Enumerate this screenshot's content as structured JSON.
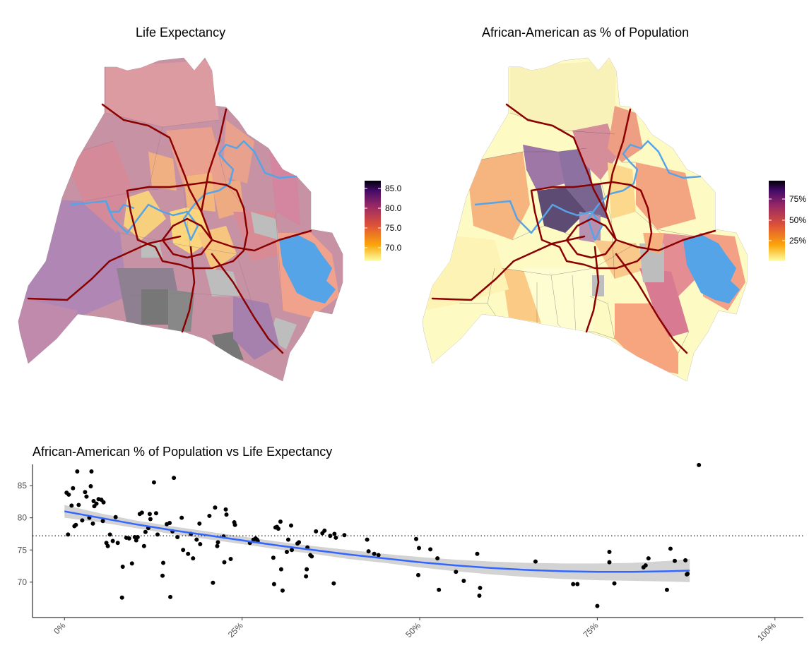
{
  "panels": {
    "map_left_title": "Life Expectancy",
    "map_right_title": "African-American as % of Population",
    "scatter_title": "African-American % of Population vs Life Expectancy"
  },
  "legend_left": {
    "ticks": [
      "85.0",
      "80.0",
      "75.0",
      "70.0"
    ]
  },
  "legend_right": {
    "ticks": [
      "75%",
      "50%",
      "25%"
    ]
  },
  "colors": {
    "water": "#56a4e8",
    "roads": "#8b0000",
    "missing": "#b5b5b5",
    "smooth_line": "#3366ff",
    "ci_band": "#d3d3d3",
    "points": "#000000"
  },
  "chart_data": {
    "type": "scatter",
    "title": "African-American % of Population vs Life Expectancy",
    "xlabel": "",
    "ylabel": "",
    "xlim": [
      -4.5,
      104
    ],
    "ylim": [
      64.5,
      88.3
    ],
    "x_ticks": [
      "0%",
      "25%",
      "50%",
      "75%",
      "100%"
    ],
    "y_ticks": [
      "70",
      "75",
      "80",
      "85"
    ],
    "reference_line_y": 77.2,
    "points": [
      [
        0.3,
        83.9
      ],
      [
        0.5,
        77.4
      ],
      [
        0.6,
        83.6
      ],
      [
        1.0,
        81.9
      ],
      [
        1.2,
        84.6
      ],
      [
        1.4,
        78.7
      ],
      [
        1.6,
        78.9
      ],
      [
        1.8,
        87.2
      ],
      [
        2.0,
        82.0
      ],
      [
        2.5,
        79.6
      ],
      [
        2.9,
        84.0
      ],
      [
        3.1,
        83.3
      ],
      [
        3.5,
        80.0
      ],
      [
        3.7,
        84.9
      ],
      [
        3.8,
        87.2
      ],
      [
        4.0,
        79.1
      ],
      [
        4.1,
        82.6
      ],
      [
        4.2,
        81.8
      ],
      [
        4.5,
        82.2
      ],
      [
        4.8,
        82.9
      ],
      [
        5.2,
        82.8
      ],
      [
        5.4,
        79.5
      ],
      [
        5.5,
        82.4
      ],
      [
        5.9,
        76.1
      ],
      [
        6.1,
        75.6
      ],
      [
        6.4,
        77.4
      ],
      [
        6.8,
        76.4
      ],
      [
        7.2,
        80.1
      ],
      [
        7.5,
        76.1
      ],
      [
        8.1,
        67.6
      ],
      [
        8.2,
        72.4
      ],
      [
        8.7,
        76.9
      ],
      [
        9.1,
        76.8
      ],
      [
        9.5,
        72.9
      ],
      [
        9.9,
        77.0
      ],
      [
        10.1,
        76.5
      ],
      [
        10.3,
        77.0
      ],
      [
        10.6,
        80.6
      ],
      [
        10.9,
        80.8
      ],
      [
        11.2,
        75.6
      ],
      [
        11.4,
        77.8
      ],
      [
        11.8,
        78.4
      ],
      [
        12.0,
        80.6
      ],
      [
        12.1,
        79.8
      ],
      [
        12.6,
        85.5
      ],
      [
        12.9,
        80.7
      ],
      [
        13.1,
        77.4
      ],
      [
        13.8,
        71.0
      ],
      [
        13.9,
        73.0
      ],
      [
        14.4,
        79.0
      ],
      [
        14.8,
        79.2
      ],
      [
        14.9,
        67.7
      ],
      [
        15.2,
        77.9
      ],
      [
        15.4,
        86.2
      ],
      [
        15.9,
        77.0
      ],
      [
        16.5,
        80.0
      ],
      [
        16.7,
        75.0
      ],
      [
        17.4,
        74.4
      ],
      [
        17.8,
        77.5
      ],
      [
        18.1,
        73.7
      ],
      [
        18.6,
        76.6
      ],
      [
        19.0,
        79.1
      ],
      [
        19.1,
        75.9
      ],
      [
        20.4,
        80.3
      ],
      [
        20.9,
        69.9
      ],
      [
        21.2,
        81.6
      ],
      [
        21.5,
        75.6
      ],
      [
        21.6,
        76.2
      ],
      [
        22.4,
        77.1
      ],
      [
        22.5,
        73.1
      ],
      [
        22.7,
        81.3
      ],
      [
        22.8,
        80.5
      ],
      [
        23.4,
        73.6
      ],
      [
        23.9,
        79.3
      ],
      [
        24.0,
        78.9
      ],
      [
        26.1,
        76.1
      ],
      [
        26.6,
        76.6
      ],
      [
        26.9,
        76.8
      ],
      [
        27.1,
        76.6
      ],
      [
        27.2,
        76.4
      ],
      [
        29.4,
        73.8
      ],
      [
        29.5,
        69.7
      ],
      [
        29.7,
        78.5
      ],
      [
        29.9,
        78.6
      ],
      [
        30.1,
        78.3
      ],
      [
        30.4,
        79.4
      ],
      [
        30.5,
        72.0
      ],
      [
        30.7,
        68.7
      ],
      [
        31.3,
        74.7
      ],
      [
        31.5,
        76.6
      ],
      [
        31.9,
        78.8
      ],
      [
        32.0,
        75.0
      ],
      [
        32.8,
        76.0
      ],
      [
        33.0,
        76.2
      ],
      [
        34.0,
        70.9
      ],
      [
        34.1,
        72.0
      ],
      [
        34.2,
        75.4
      ],
      [
        34.6,
        74.2
      ],
      [
        34.8,
        74.0
      ],
      [
        35.4,
        77.9
      ],
      [
        36.3,
        77.6
      ],
      [
        36.6,
        78.0
      ],
      [
        37.4,
        77.2
      ],
      [
        37.9,
        69.8
      ],
      [
        38.0,
        77.5
      ],
      [
        38.2,
        76.9
      ],
      [
        39.4,
        77.3
      ],
      [
        42.6,
        76.6
      ],
      [
        42.8,
        74.8
      ],
      [
        43.6,
        74.4
      ],
      [
        44.2,
        74.2
      ],
      [
        49.5,
        76.7
      ],
      [
        49.8,
        71.1
      ],
      [
        49.9,
        75.3
      ],
      [
        51.5,
        75.1
      ],
      [
        52.5,
        73.7
      ],
      [
        52.7,
        68.8
      ],
      [
        55.1,
        71.6
      ],
      [
        56.2,
        70.2
      ],
      [
        58.1,
        74.4
      ],
      [
        58.4,
        67.9
      ],
      [
        58.5,
        69.1
      ],
      [
        66.3,
        73.2
      ],
      [
        71.6,
        69.7
      ],
      [
        72.2,
        69.7
      ],
      [
        75.0,
        66.3
      ],
      [
        76.7,
        74.7
      ],
      [
        76.7,
        73.1
      ],
      [
        77.4,
        69.8
      ],
      [
        81.5,
        72.3
      ],
      [
        81.8,
        72.6
      ],
      [
        82.2,
        73.7
      ],
      [
        84.8,
        68.8
      ],
      [
        85.3,
        75.2
      ],
      [
        85.9,
        73.3
      ],
      [
        87.4,
        73.4
      ],
      [
        87.6,
        71.2
      ],
      [
        87.7,
        71.3
      ],
      [
        89.3,
        88.2
      ]
    ],
    "smooth_fit": {
      "x": [
        0,
        5,
        10,
        15,
        20,
        25,
        30,
        35,
        40,
        45,
        50,
        55,
        60,
        65,
        70,
        75,
        80,
        85,
        88
      ],
      "y": [
        81.0,
        80.0,
        79.0,
        78.1,
        77.3,
        76.5,
        75.7,
        75.0,
        74.3,
        73.7,
        73.1,
        72.6,
        72.2,
        71.9,
        71.7,
        71.6,
        71.6,
        71.7,
        71.8
      ],
      "band": [
        1.0,
        0.7,
        0.6,
        0.6,
        0.6,
        0.6,
        0.6,
        0.6,
        0.7,
        0.7,
        0.8,
        0.9,
        1.0,
        1.1,
        1.2,
        1.3,
        1.4,
        1.6,
        1.8
      ]
    }
  }
}
